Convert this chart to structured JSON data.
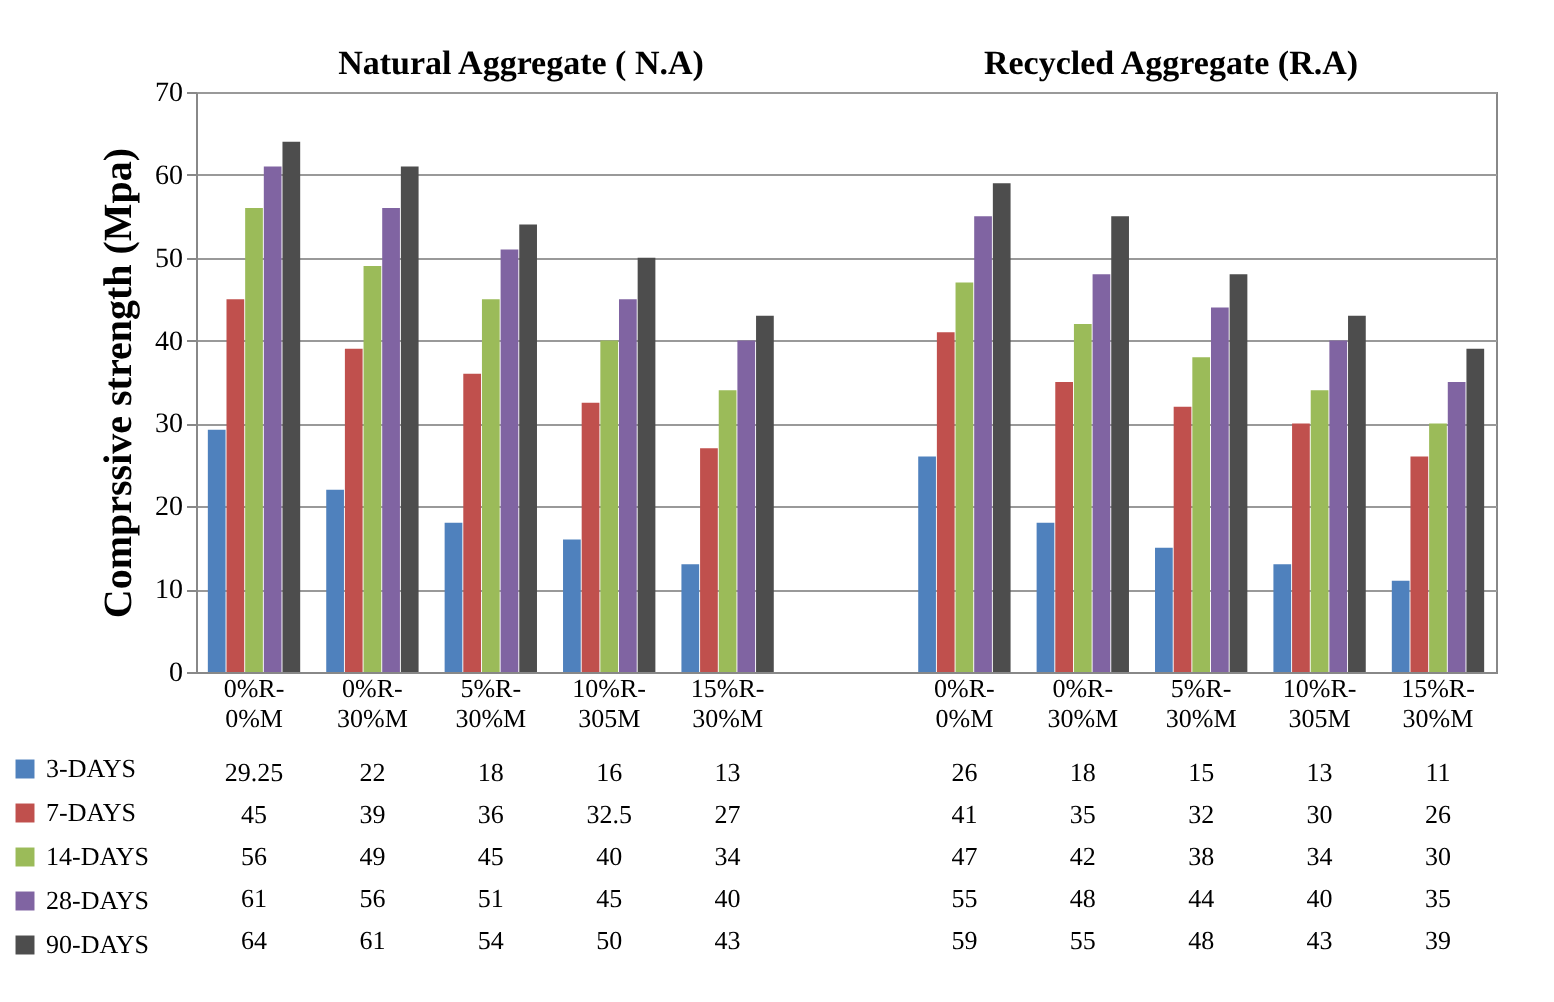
{
  "chart_data": {
    "type": "bar",
    "annotations": [
      "Natural Aggregate ( N.A)",
      "Recycled Aggregate (R.A)"
    ],
    "ylabel": "Comprssive strength (Mpa)",
    "categories": [
      "0%R-0%M",
      "0%R-30%M",
      "5%R-30%M",
      "10%R-305M",
      "15%R-30%M",
      null,
      "0%R-0%M",
      "0%R-30%M",
      "5%R-30%M",
      "10%R-305M",
      "15%R-30%M"
    ],
    "series": [
      {
        "name": "3-DAYS",
        "color": "#4f81bd",
        "values": [
          29.25,
          22,
          18,
          16,
          13,
          null,
          26,
          18,
          15,
          13,
          11
        ]
      },
      {
        "name": "7-DAYS",
        "color": "#c0504d",
        "values": [
          45,
          39,
          36,
          32.5,
          27,
          null,
          41,
          35,
          32,
          30,
          26
        ]
      },
      {
        "name": "14-DAYS",
        "color": "#9bbb59",
        "values": [
          56,
          49,
          45,
          40,
          34,
          null,
          47,
          42,
          38,
          34,
          30
        ]
      },
      {
        "name": "28-DAYS",
        "color": "#8064a2",
        "values": [
          61,
          56,
          51,
          45,
          40,
          null,
          55,
          48,
          44,
          40,
          35
        ]
      },
      {
        "name": "90-DAYS",
        "color": "#4d4d4d",
        "values": [
          64,
          61,
          54,
          50,
          43,
          null,
          59,
          55,
          48,
          43,
          39
        ]
      }
    ],
    "ylim": [
      0,
      70
    ],
    "yticks": [
      0,
      10,
      20,
      30,
      40,
      50,
      60,
      70
    ],
    "grid": "y",
    "legend": "bottom left",
    "data_labels": true
  }
}
